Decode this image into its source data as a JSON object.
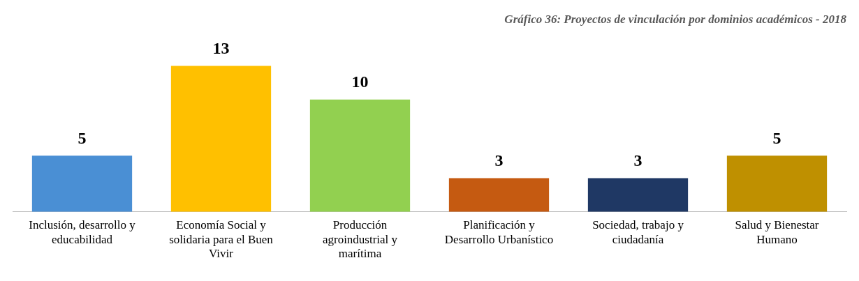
{
  "chart_data": {
    "type": "bar",
    "title": "Gráfico 36: Proyectos de vinculación por dominios académicos - 2018",
    "categories": [
      "Inclusión, desarrollo y educabilidad",
      "Economía Social y solidaria para el Buen Vivir",
      "Producción agroindustrial y marítima",
      "Planificación y Desarrollo Urbanístico",
      "Sociedad, trabajo y ciudadanía",
      "Salud y Bienestar Humano"
    ],
    "values": [
      5,
      13,
      10,
      3,
      3,
      5
    ],
    "colors": [
      "#4a8fd4",
      "#ffc000",
      "#92d050",
      "#c55a11",
      "#1f3864",
      "#bf9000"
    ],
    "data_labels": true,
    "grid": false,
    "legend": false
  }
}
